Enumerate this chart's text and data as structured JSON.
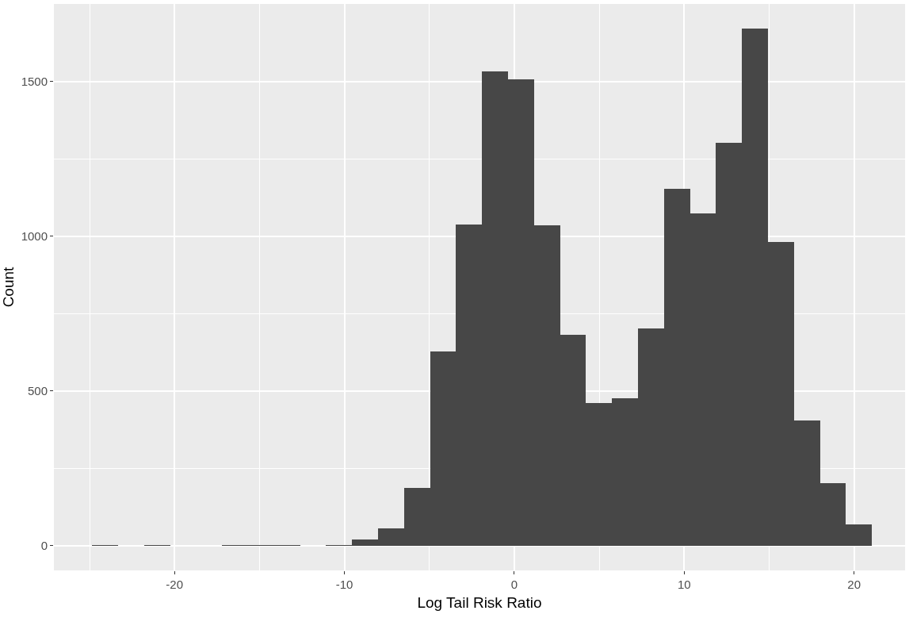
{
  "chart_data": {
    "type": "histogram",
    "xlabel": "Log Tail Risk Ratio",
    "ylabel": "Count",
    "bins": [
      -24.85,
      -23.32,
      -21.79,
      -20.26,
      -18.73,
      -17.2,
      -15.67,
      -14.14,
      -12.61,
      -11.08,
      -9.55,
      -8.02,
      -6.49,
      -4.96,
      -3.43,
      -1.9,
      -0.37,
      1.16,
      2.69,
      4.22,
      5.75,
      7.28,
      8.81,
      10.34,
      11.87,
      13.4,
      14.93,
      16.46,
      17.99,
      19.52,
      21.05
    ],
    "values": [
      1,
      0,
      1,
      0,
      0,
      1,
      1,
      1,
      0,
      1,
      20,
      56,
      187,
      627,
      1038,
      1531,
      1506,
      1034,
      681,
      460,
      477,
      701,
      1153,
      1074,
      1302,
      1670,
      982,
      405,
      202,
      68
    ],
    "color": "#474747",
    "xlim": [
      -27.1,
      23
    ],
    "xticks": [
      -20,
      -10,
      0,
      10,
      20,
      {
        "value": -25,
        "label": null
      },
      {
        "value": -15,
        "label": null
      },
      {
        "value": -5,
        "label": null
      },
      {
        "value": 5,
        "label": null
      },
      {
        "value": 15,
        "label": null
      }
    ],
    "ylim": [
      -80,
      1750
    ],
    "yticks": [
      0,
      500,
      1000,
      1500,
      {
        "value": 250,
        "label": null
      },
      {
        "value": 750,
        "label": null
      },
      {
        "value": 1250,
        "label": null
      }
    ],
    "grid": true
  }
}
